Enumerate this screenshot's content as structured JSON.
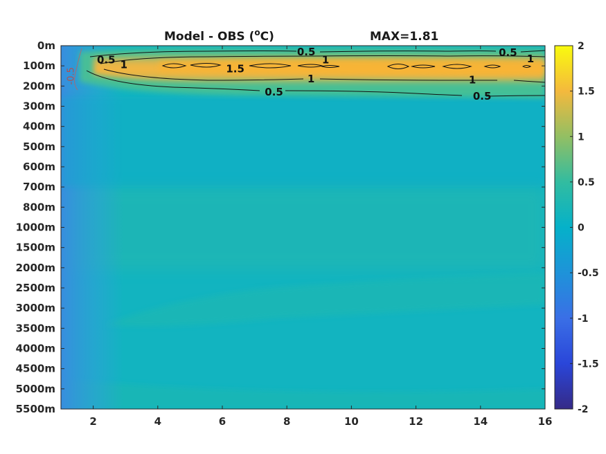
{
  "chart_data": {
    "type": "heatmap",
    "title_left_main": "Model - OBS (",
    "title_left_sup": "o",
    "title_left_end": "C)",
    "title_right": "MAX=1.81",
    "xlim": [
      1,
      16
    ],
    "x_ticks": [
      "2",
      "4",
      "6",
      "8",
      "10",
      "12",
      "14",
      "16"
    ],
    "x_tick_values": [
      2,
      4,
      6,
      8,
      10,
      12,
      14,
      16
    ],
    "y_ticks": [
      "0m",
      "100m",
      "200m",
      "300m",
      "400m",
      "500m",
      "600m",
      "700m",
      "800m",
      "1000m",
      "1500m",
      "2000m",
      "2500m",
      "3000m",
      "3500m",
      "4000m",
      "4500m",
      "5000m",
      "5500m"
    ],
    "clim": [
      -2,
      2
    ],
    "colorbar_ticks": [
      "2",
      "1.5",
      "1",
      "0.5",
      "0",
      "-0.5",
      "-1",
      "-1.5",
      "-2"
    ],
    "colorbar_tick_values": [
      2,
      1.5,
      1,
      0.5,
      0,
      -0.5,
      -1,
      -1.5,
      -2
    ],
    "colormap": "parula",
    "contour_levels": [
      -0.5,
      0.5,
      1,
      1.5
    ],
    "contour_labels": [
      {
        "text": "0.5",
        "x": 2.4,
        "depth_index": 0.7
      },
      {
        "text": "1",
        "x": 2.95,
        "depth_index": 0.95
      },
      {
        "text": "0.5",
        "x": 8.6,
        "depth_index": 0.3
      },
      {
        "text": "1",
        "x": 9.2,
        "depth_index": 0.7
      },
      {
        "text": "1.5",
        "x": 6.4,
        "depth_index": 1.15
      },
      {
        "text": "1",
        "x": 8.75,
        "depth_index": 1.65
      },
      {
        "text": "0.5",
        "x": 7.6,
        "depth_index": 2.3
      },
      {
        "text": "1",
        "x": 13.75,
        "depth_index": 1.7
      },
      {
        "text": "0.5",
        "x": 14.85,
        "depth_index": 0.35
      },
      {
        "text": "1",
        "x": 15.55,
        "depth_index": 0.65
      },
      {
        "text": "0.5",
        "x": 14.05,
        "depth_index": 2.5
      }
    ],
    "negative_contour_label": {
      "text": "-0.5",
      "x": 1.4,
      "depth_index": 1.5
    }
  }
}
